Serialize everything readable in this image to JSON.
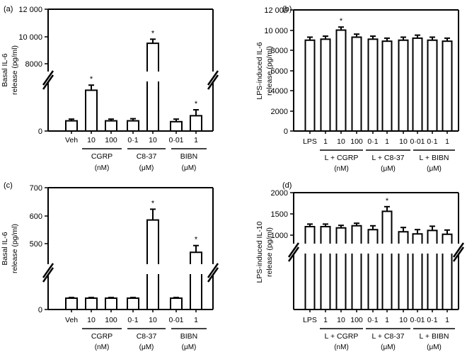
{
  "chart_data": [
    {
      "panel_label": "(a)",
      "type": "bar",
      "ylabel": [
        "Basal IL-6",
        "release (pg/ml)"
      ],
      "axis_break": true,
      "y_ticks": [
        "0",
        "8000",
        "10 000",
        "12 000"
      ],
      "categories": [
        "Veh",
        "10",
        "100",
        "0·1",
        "10",
        "0·01",
        "1"
      ],
      "groups": [
        {
          "name": "CGRP",
          "unit": "(nM)"
        },
        {
          "name": "C8-37",
          "unit": "(μM)"
        },
        {
          "name": "BIBN",
          "unit": "(μM)"
        }
      ],
      "values": [
        1200,
        4800,
        1200,
        1200,
        9500,
        1100,
        1800
      ],
      "errors": [
        200,
        600,
        200,
        250,
        300,
        300,
        700
      ],
      "significant": [
        false,
        true,
        false,
        false,
        true,
        false,
        true
      ],
      "significance_marker": "*"
    },
    {
      "panel_label": "(b)",
      "type": "bar",
      "ylabel": [
        "LPS-induced IL-6",
        "release (pg/ml)"
      ],
      "axis_break": false,
      "ylim": [
        0,
        12000
      ],
      "y_ticks": [
        "0",
        "2000",
        "4000",
        "6000",
        "8000",
        "10 000",
        "12 000"
      ],
      "categories": [
        "LPS",
        "1",
        "10",
        "100",
        "0·1",
        "1",
        "10",
        "0·01",
        "0·1",
        "1"
      ],
      "groups": [
        {
          "name": "L + CGRP",
          "unit": "(nM)"
        },
        {
          "name": "L + C8-37",
          "unit": "(μM)"
        },
        {
          "name": "L + BIBN",
          "unit": "(μM)"
        }
      ],
      "values": [
        9000,
        9100,
        10000,
        9300,
        9100,
        8900,
        9000,
        9200,
        9000,
        8900
      ],
      "errors": [
        300,
        300,
        300,
        300,
        300,
        300,
        300,
        300,
        300,
        300
      ],
      "significant": [
        false,
        false,
        true,
        false,
        false,
        false,
        false,
        false,
        false,
        false
      ],
      "significance_marker": "*"
    },
    {
      "panel_label": "(c)",
      "type": "bar",
      "ylabel": [
        "Basal IL-6",
        "release (pg/ml)"
      ],
      "axis_break": true,
      "y_ticks": [
        "0",
        "500",
        "600",
        "700"
      ],
      "categories": [
        "Veh",
        "10",
        "100",
        "0·1",
        "10",
        "0·01",
        "1"
      ],
      "groups": [
        {
          "name": "CGRP",
          "unit": "(nM)"
        },
        {
          "name": "C8-37",
          "unit": "(μM)"
        },
        {
          "name": "BIBN",
          "unit": "(μM)"
        }
      ],
      "values": [
        80,
        80,
        80,
        80,
        580,
        80,
        460
      ],
      "errors": [
        5,
        5,
        5,
        5,
        40,
        5,
        25
      ],
      "significant": [
        false,
        false,
        false,
        false,
        true,
        false,
        true
      ],
      "significance_marker": "*"
    },
    {
      "panel_label": "(d)",
      "type": "bar",
      "ylabel": [
        "LPS-induced IL-10",
        "release (pg/ml)"
      ],
      "axis_break": true,
      "y_ticks": [
        "1000",
        "1500",
        "2000"
      ],
      "categories": [
        "LPS",
        "1",
        "10",
        "100",
        "0·1",
        "1",
        "10",
        "0·01",
        "0·1",
        "1"
      ],
      "groups": [
        {
          "name": "L + CGRP",
          "unit": "(nM)"
        },
        {
          "name": "L + C8-37",
          "unit": "(μM)"
        },
        {
          "name": "L + BIBN",
          "unit": "(μM)"
        }
      ],
      "values": [
        1200,
        1200,
        1170,
        1220,
        1130,
        1560,
        1080,
        1030,
        1110,
        1020
      ],
      "errors": [
        60,
        60,
        60,
        60,
        90,
        110,
        100,
        100,
        100,
        100
      ],
      "significant": [
        false,
        false,
        false,
        false,
        false,
        true,
        false,
        false,
        false,
        false
      ],
      "significance_marker": "*"
    }
  ]
}
